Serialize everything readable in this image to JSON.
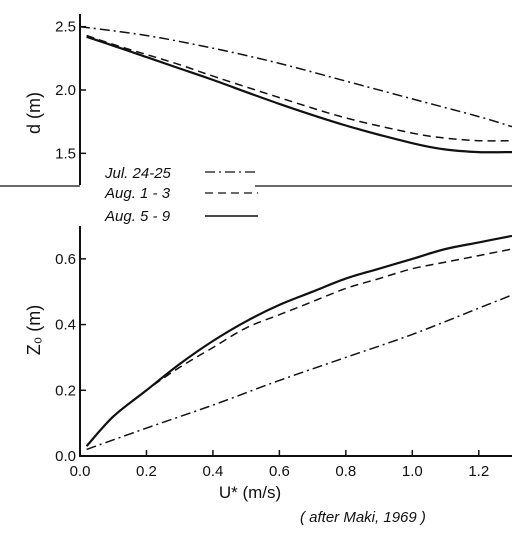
{
  "chart_data": [
    {
      "type": "line",
      "panel": "top",
      "ylabel": "d (m)",
      "xlim": [
        0,
        1.3
      ],
      "ylim": [
        1.25,
        2.6
      ],
      "yticks": [
        "2.5",
        "2.0",
        "1.5"
      ],
      "ytick_values": [
        2.5,
        2.0,
        1.5
      ],
      "series": [
        {
          "name": "Jul. 24-25",
          "style": "dashdot",
          "x": [
            0.0,
            0.2,
            0.4,
            0.6,
            0.8,
            1.0,
            1.2,
            1.3
          ],
          "y": [
            2.5,
            2.43,
            2.33,
            2.21,
            2.07,
            1.93,
            1.79,
            1.71
          ]
        },
        {
          "name": "Aug. 1 - 3",
          "style": "dashed",
          "x": [
            0.02,
            0.1,
            0.2,
            0.3,
            0.4,
            0.6,
            0.8,
            1.0,
            1.1,
            1.2,
            1.3
          ],
          "y": [
            2.43,
            2.36,
            2.28,
            2.2,
            2.11,
            1.94,
            1.78,
            1.66,
            1.62,
            1.6,
            1.6
          ]
        },
        {
          "name": "Aug. 5 - 9",
          "style": "solid",
          "x": [
            0.02,
            0.1,
            0.2,
            0.3,
            0.4,
            0.6,
            0.8,
            1.0,
            1.1,
            1.2,
            1.3
          ],
          "y": [
            2.42,
            2.35,
            2.26,
            2.17,
            2.08,
            1.89,
            1.72,
            1.58,
            1.53,
            1.51,
            1.51
          ]
        }
      ]
    },
    {
      "type": "line",
      "panel": "bottom",
      "xlabel": "U* (m/s)",
      "ylabel": "Z₀ (m)",
      "xlim": [
        0,
        1.3
      ],
      "ylim": [
        0,
        0.7
      ],
      "xticks": [
        "0.0",
        "0.2",
        "0.4",
        "0.6",
        "0.8",
        "1.0",
        "1.2"
      ],
      "xtick_values": [
        0.0,
        0.2,
        0.4,
        0.6,
        0.8,
        1.0,
        1.2
      ],
      "yticks": [
        "0.0",
        "0.2",
        "0.4",
        "0.6"
      ],
      "ytick_values": [
        0.0,
        0.2,
        0.4,
        0.6
      ],
      "series": [
        {
          "name": "Jul. 24-25",
          "style": "dashdot",
          "x": [
            0.02,
            0.2,
            0.4,
            0.6,
            0.8,
            1.0,
            1.2,
            1.3
          ],
          "y": [
            0.02,
            0.085,
            0.155,
            0.23,
            0.3,
            0.37,
            0.45,
            0.49
          ]
        },
        {
          "name": "Aug. 1 - 3",
          "style": "dashed",
          "x": [
            0.02,
            0.1,
            0.2,
            0.3,
            0.4,
            0.5,
            0.6,
            0.7,
            0.8,
            0.9,
            1.0,
            1.1,
            1.2,
            1.3
          ],
          "y": [
            0.03,
            0.12,
            0.2,
            0.27,
            0.33,
            0.39,
            0.43,
            0.47,
            0.51,
            0.54,
            0.57,
            0.59,
            0.61,
            0.63
          ]
        },
        {
          "name": "Aug. 5 - 9",
          "style": "solid",
          "x": [
            0.02,
            0.1,
            0.2,
            0.3,
            0.4,
            0.5,
            0.6,
            0.7,
            0.8,
            0.9,
            1.0,
            1.1,
            1.2,
            1.3
          ],
          "y": [
            0.03,
            0.12,
            0.2,
            0.28,
            0.35,
            0.41,
            0.46,
            0.5,
            0.54,
            0.57,
            0.6,
            0.63,
            0.65,
            0.67
          ]
        }
      ]
    }
  ],
  "legend": {
    "placement": "middle-left",
    "entries": [
      "Jul. 24-25",
      "Aug. 1 - 3",
      "Aug. 5 - 9"
    ]
  },
  "credit": "( after Maki, 1969 )"
}
